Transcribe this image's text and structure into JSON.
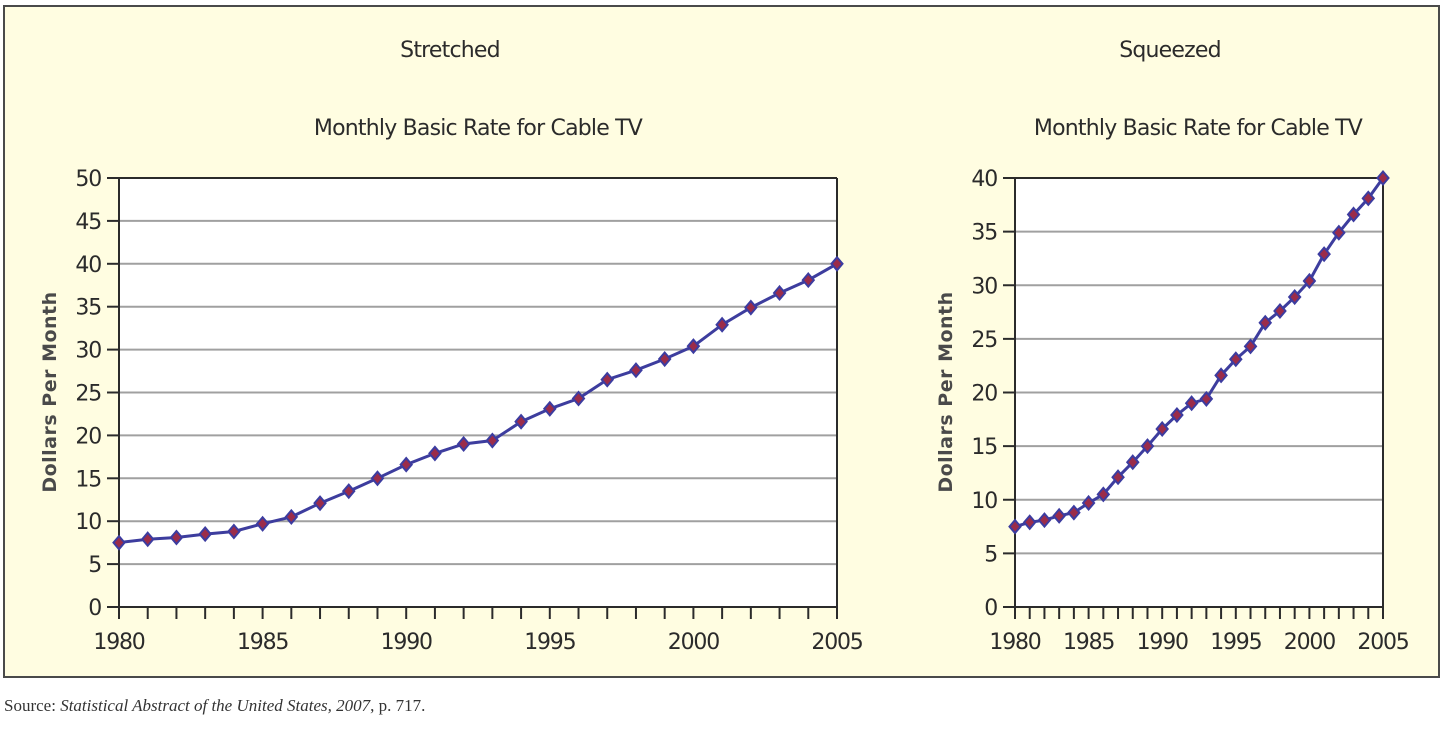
{
  "source": {
    "prefix": "Source: ",
    "title": "Statistical Abstract of the United States, 2007",
    "suffix": ", p. 717."
  },
  "colors": {
    "background": "#fffde1",
    "plot_background": "#ffffff",
    "line": "#3d3d9e",
    "marker_fill": "#9b2c4a",
    "marker_stroke": "#3c3ca0",
    "grid": "#a0a0a0"
  },
  "chart_data": [
    {
      "type": "line",
      "heading": "Stretched",
      "title": "Monthly Basic Rate for Cable TV",
      "xlabel": "",
      "ylabel": "Dollars Per Month",
      "x": [
        1980,
        1981,
        1982,
        1983,
        1984,
        1985,
        1986,
        1987,
        1988,
        1989,
        1990,
        1991,
        1992,
        1993,
        1994,
        1995,
        1996,
        1997,
        1998,
        1999,
        2000,
        2001,
        2002,
        2003,
        2004,
        2005
      ],
      "values": [
        7.5,
        7.9,
        8.1,
        8.5,
        8.8,
        9.7,
        10.5,
        12.1,
        13.5,
        15.0,
        16.6,
        17.9,
        19.0,
        19.4,
        21.6,
        23.1,
        24.3,
        26.5,
        27.6,
        28.9,
        30.4,
        32.9,
        34.9,
        36.6,
        38.1,
        40.0
      ],
      "xlim": [
        1980,
        2005
      ],
      "ylim": [
        0,
        50
      ],
      "xticks": [
        "1980",
        "1985",
        "1990",
        "1995",
        "2000",
        "2005"
      ],
      "yticks": [
        "0",
        "5",
        "10",
        "15",
        "20",
        "25",
        "30",
        "35",
        "40",
        "45",
        "50"
      ],
      "grid": true,
      "marker": "diamond"
    },
    {
      "type": "line",
      "heading": "Squeezed",
      "title": "Monthly Basic Rate for Cable TV",
      "xlabel": "",
      "ylabel": "Dollars Per Month",
      "x": [
        1980,
        1981,
        1982,
        1983,
        1984,
        1985,
        1986,
        1987,
        1988,
        1989,
        1990,
        1991,
        1992,
        1993,
        1994,
        1995,
        1996,
        1997,
        1998,
        1999,
        2000,
        2001,
        2002,
        2003,
        2004,
        2005
      ],
      "values": [
        7.5,
        7.9,
        8.1,
        8.5,
        8.8,
        9.7,
        10.5,
        12.1,
        13.5,
        15.0,
        16.6,
        17.9,
        19.0,
        19.4,
        21.6,
        23.1,
        24.3,
        26.5,
        27.6,
        28.9,
        30.4,
        32.9,
        34.9,
        36.6,
        38.1,
        40.0
      ],
      "xlim": [
        1980,
        2005
      ],
      "ylim": [
        0,
        40
      ],
      "xticks": [
        "1980",
        "1985",
        "1990",
        "1995",
        "2000",
        "2005"
      ],
      "yticks": [
        "0",
        "5",
        "10",
        "15",
        "20",
        "25",
        "30",
        "35",
        "40"
      ],
      "grid": true,
      "marker": "diamond"
    }
  ]
}
